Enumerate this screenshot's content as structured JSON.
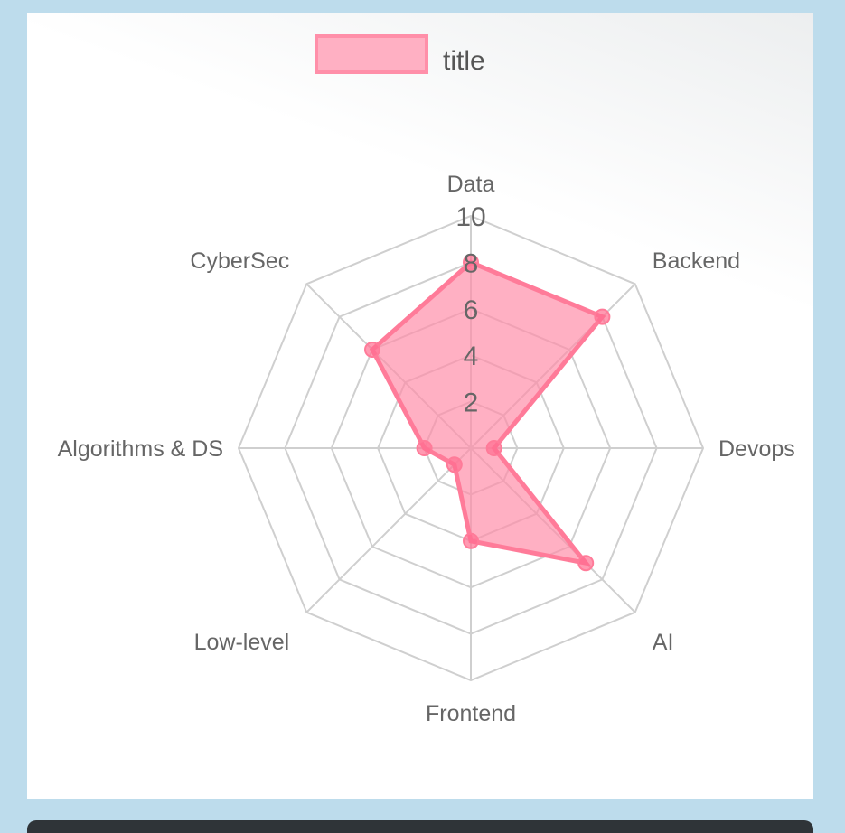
{
  "chart_data": {
    "type": "radar",
    "title": "",
    "legend": {
      "position": "top",
      "entries": [
        "title"
      ]
    },
    "categories": [
      "Data",
      "Backend",
      "Devops",
      "AI",
      "Frontend",
      "Low-level",
      "Algorithms & DS",
      "CyberSec"
    ],
    "series": [
      {
        "name": "title",
        "values": [
          8,
          8,
          1,
          7,
          4,
          1,
          2,
          6
        ]
      }
    ],
    "r_ticks": [
      "2",
      "4",
      "6",
      "8",
      "10"
    ],
    "r_max": 10,
    "grid": true,
    "colors": {
      "fill": "#ff8ba6",
      "stroke": "#ff7b99",
      "point": "#ff6e90",
      "grid": "#cfcfcf"
    }
  }
}
